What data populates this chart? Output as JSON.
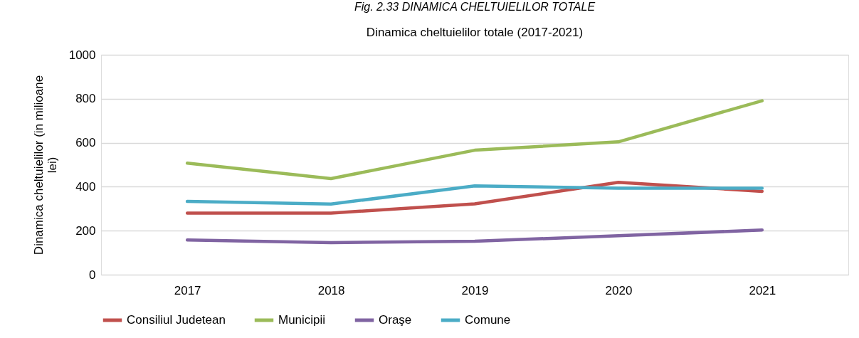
{
  "chart_data": {
    "type": "line",
    "title": "Dinamica cheltuielilor totale (2017-2021)",
    "annotations": [
      "Fig. 2.33 DINAMICA CHELTUIELILOR TOTALE"
    ],
    "ylabel": "Dinamica cheltuielilor (in milioane lei)",
    "categories": [
      "2017",
      "2018",
      "2019",
      "2020",
      "2021"
    ],
    "series": [
      {
        "name": "Consiliul Judetean",
        "color": "#c0504d",
        "values": [
          280,
          280,
          322,
          420,
          379
        ]
      },
      {
        "name": "Municipii",
        "color": "#9bbb59",
        "values": [
          507,
          437,
          566,
          604,
          791
        ]
      },
      {
        "name": "Oraşe",
        "color": "#8064a2",
        "values": [
          158,
          146,
          152,
          177,
          203
        ]
      },
      {
        "name": "Comune",
        "color": "#4bacc6",
        "values": [
          333,
          321,
          404,
          393,
          393
        ]
      }
    ],
    "ylim": [
      0,
      1000
    ],
    "yticks": [
      0,
      200,
      400,
      600,
      800,
      1000
    ],
    "grid": "y",
    "legend": "bottom"
  }
}
